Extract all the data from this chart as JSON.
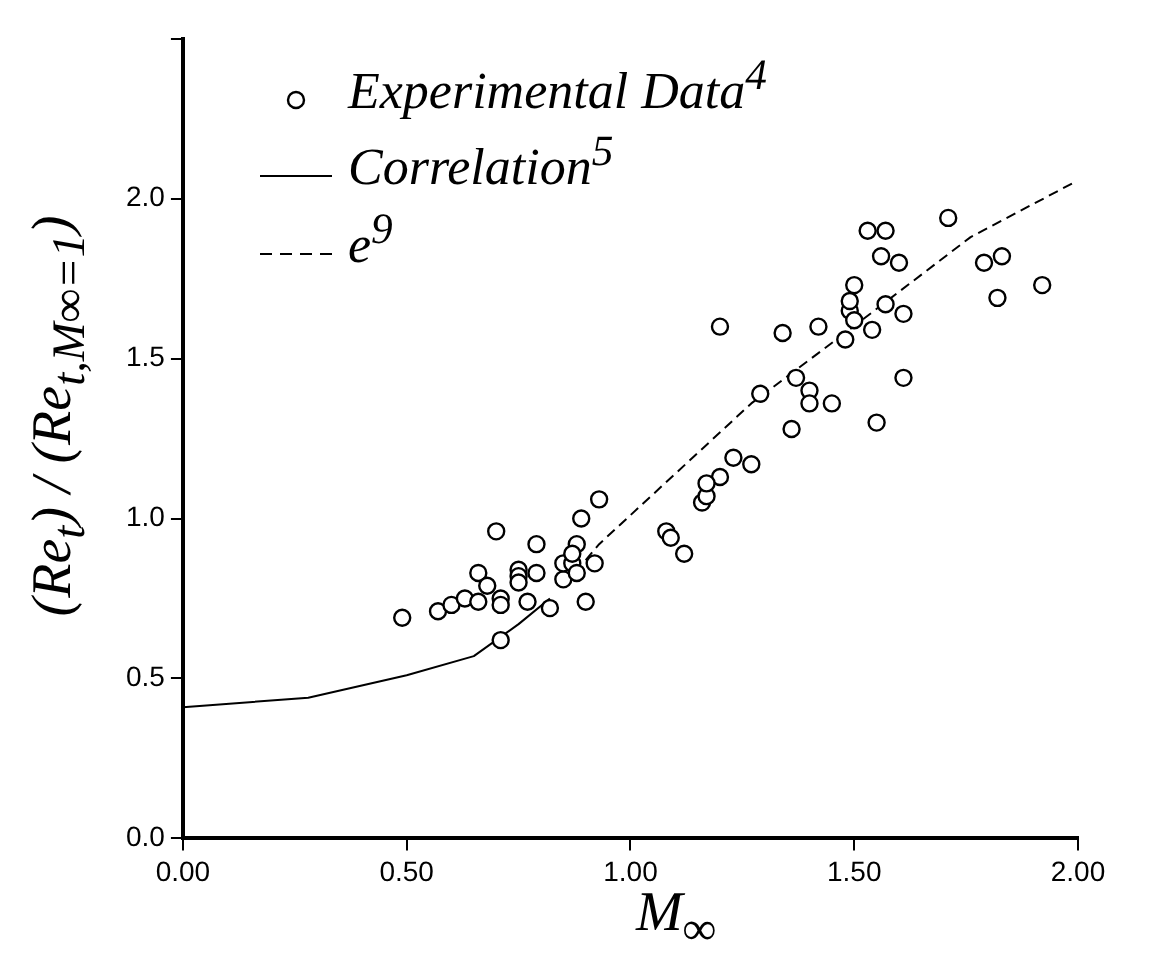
{
  "chart_data": {
    "type": "scatter",
    "xlabel": "M$_{∞}$",
    "ylabel": "(Re$_{t}$) / (Re$_{t,M∞=1}$)",
    "xlim": [
      0,
      2.0
    ],
    "ylim": [
      0,
      2.5
    ],
    "xticks": [
      {
        "value": 0,
        "label": "0.00"
      },
      {
        "value": 0.5,
        "label": "0.50"
      },
      {
        "value": 1.0,
        "label": "1.00"
      },
      {
        "value": 1.5,
        "label": "1.50"
      },
      {
        "value": 2.0,
        "label": "2.00"
      }
    ],
    "yticks": [
      {
        "value": 0,
        "label": "0.0"
      },
      {
        "value": 0.5,
        "label": "0.5"
      },
      {
        "value": 1.0,
        "label": "1.0"
      },
      {
        "value": 1.5,
        "label": "1.5"
      },
      {
        "value": 2.0,
        "label": "2.0"
      },
      {
        "value": 2.5,
        "label": null
      }
    ],
    "grid": false,
    "legend": "top left",
    "series": [
      {
        "name": "Experimental Data$^{4}$",
        "marker": "circle",
        "color": "#000000",
        "x": [
          0.49,
          0.57,
          0.6,
          0.63,
          0.66,
          0.66,
          0.68,
          0.7,
          0.71,
          0.71,
          0.71,
          0.75,
          0.75,
          0.75,
          0.77,
          0.79,
          0.79,
          0.82,
          0.85,
          0.85,
          0.87,
          0.88,
          0.88,
          0.87,
          0.89,
          0.9,
          0.92,
          1.08,
          1.09,
          1.12,
          0.93,
          1.16,
          1.17,
          1.2,
          1.17,
          1.23,
          1.27,
          1.2,
          1.29,
          1.34,
          1.36,
          1.37,
          1.4,
          1.4,
          1.42,
          1.45,
          1.48,
          1.49,
          1.49,
          1.5,
          1.5,
          1.54,
          1.55,
          1.56,
          1.57,
          1.6,
          1.61,
          1.61,
          1.79,
          1.83,
          1.82,
          1.92,
          1.53,
          1.57,
          1.71
        ],
        "values": [
          0.69,
          0.71,
          0.73,
          0.75,
          0.74,
          0.83,
          0.79,
          0.96,
          0.75,
          0.73,
          0.62,
          0.84,
          0.82,
          0.8,
          0.74,
          0.92,
          0.83,
          0.72,
          0.81,
          0.86,
          0.86,
          0.92,
          0.83,
          0.89,
          1.0,
          0.74,
          0.86,
          0.96,
          0.94,
          0.89,
          1.06,
          1.05,
          1.07,
          1.13,
          1.11,
          1.19,
          1.17,
          1.6,
          1.39,
          1.58,
          1.28,
          1.44,
          1.4,
          1.36,
          1.6,
          1.36,
          1.56,
          1.65,
          1.68,
          1.62,
          1.73,
          1.59,
          1.3,
          1.82,
          1.67,
          1.8,
          1.64,
          1.44,
          1.8,
          1.82,
          1.69,
          1.73,
          1.9,
          1.9,
          1.94
        ]
      },
      {
        "name": "Correlation$^{5}$",
        "type": "line",
        "marker": "none",
        "line_style": "solid",
        "color": "#000000",
        "x": [
          0,
          0.28,
          0.5,
          0.65,
          0.75,
          0.82
        ],
        "values": [
          0.41,
          0.44,
          0.51,
          0.57,
          0.67,
          0.75
        ]
      },
      {
        "name": "e$^{9}$",
        "type": "line",
        "marker": "none",
        "line_style": "dashed",
        "color": "#000000",
        "x": [
          0.9,
          0.93,
          1.27,
          1.47,
          1.76,
          1.99
        ],
        "values": [
          0.87,
          0.92,
          1.36,
          1.57,
          1.88,
          2.05
        ]
      }
    ]
  }
}
